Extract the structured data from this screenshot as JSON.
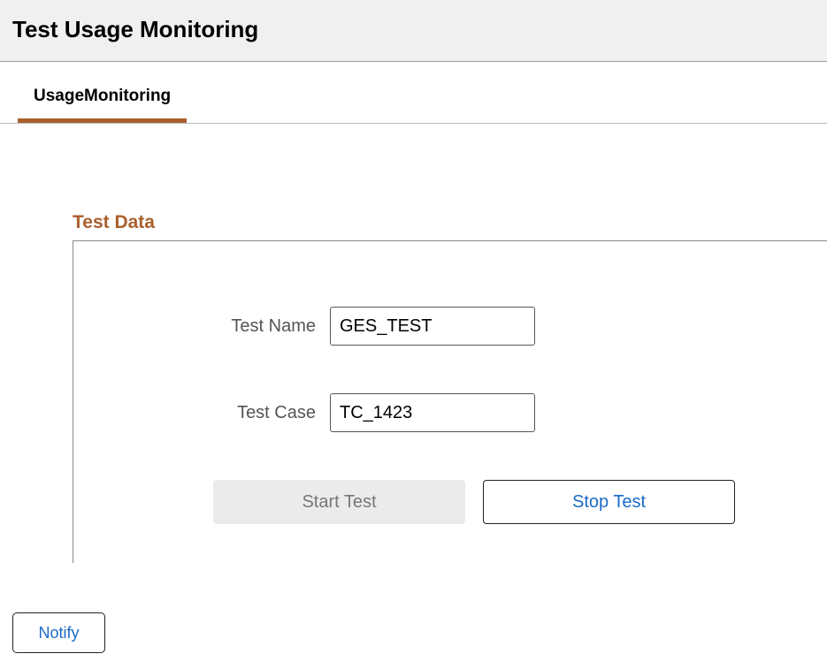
{
  "header": {
    "title": "Test Usage Monitoring"
  },
  "tabs": [
    {
      "label": "UsageMonitoring",
      "active": true
    }
  ],
  "section": {
    "title": "Test Data",
    "fields": {
      "testName": {
        "label": "Test Name",
        "value": "GES_TEST"
      },
      "testCase": {
        "label": "Test Case",
        "value": "TC_1423"
      }
    },
    "buttons": {
      "start": "Start Test",
      "stop": "Stop Test"
    }
  },
  "footer": {
    "notify": "Notify"
  },
  "colors": {
    "accent": "#a9602e",
    "link": "#1a6bc7",
    "headerBg": "#f0f0f0",
    "disabledBg": "#ebebeb",
    "disabledText": "#777777",
    "border": "#888888"
  }
}
